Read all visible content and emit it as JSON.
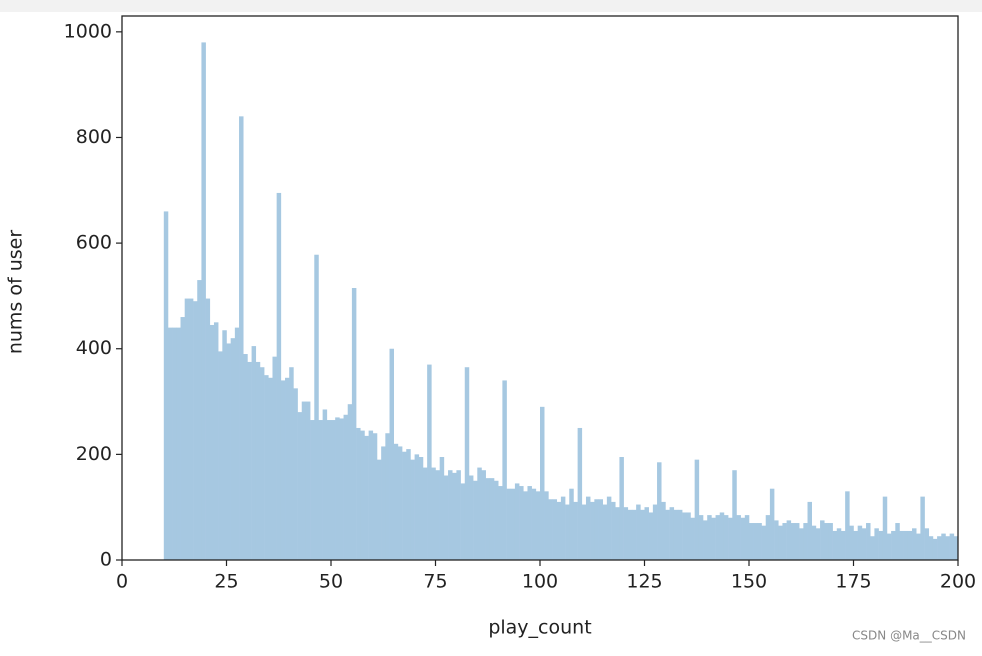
{
  "chart_data": {
    "type": "histogram",
    "xlabel": "play_count",
    "ylabel": "nums of user",
    "watermark": "CSDN @Ma__CSDN",
    "color": "#a6c8e1",
    "bins": [
      10,
      11,
      12,
      13,
      14,
      15,
      16,
      17,
      18,
      19,
      20,
      21,
      22,
      23,
      24,
      25,
      26,
      27,
      28,
      29,
      30,
      31,
      32,
      33,
      34,
      35,
      36,
      37,
      38,
      39,
      40,
      41,
      42,
      43,
      44,
      45,
      46,
      47,
      48,
      49,
      50,
      51,
      52,
      53,
      54,
      55,
      56,
      57,
      58,
      59,
      60,
      61,
      62,
      63,
      64,
      65,
      66,
      67,
      68,
      69,
      70,
      71,
      72,
      73,
      74,
      75,
      76,
      77,
      78,
      79,
      80,
      81,
      82,
      83,
      84,
      85,
      86,
      87,
      88,
      89,
      90,
      91,
      92,
      93,
      94,
      95,
      96,
      97,
      98,
      99,
      100,
      101,
      102,
      103,
      104,
      105,
      106,
      107,
      108,
      109,
      110,
      111,
      112,
      113,
      114,
      115,
      116,
      117,
      118,
      119,
      120,
      121,
      122,
      123,
      124,
      125,
      126,
      127,
      128,
      129,
      130,
      131,
      132,
      133,
      134,
      135,
      136,
      137,
      138,
      139,
      140,
      141,
      142,
      143,
      144,
      145,
      146,
      147,
      148,
      149,
      150,
      151,
      152,
      153,
      154,
      155,
      156,
      157,
      158,
      159,
      160,
      161,
      162,
      163,
      164,
      165,
      166,
      167,
      168,
      169,
      170,
      171,
      172,
      173,
      174,
      175,
      176,
      177,
      178,
      179,
      180,
      181,
      182,
      183,
      184,
      185,
      186,
      187,
      188,
      189,
      190,
      191,
      192,
      193,
      194,
      195,
      196,
      197,
      198,
      199,
      200
    ],
    "counts": [
      660,
      440,
      440,
      440,
      460,
      495,
      495,
      490,
      530,
      980,
      495,
      445,
      450,
      395,
      435,
      410,
      420,
      440,
      840,
      390,
      375,
      405,
      375,
      365,
      350,
      345,
      385,
      695,
      340,
      345,
      365,
      325,
      280,
      300,
      300,
      265,
      578,
      265,
      285,
      265,
      265,
      270,
      268,
      275,
      295,
      515,
      250,
      245,
      235,
      245,
      240,
      190,
      215,
      240,
      400,
      220,
      215,
      205,
      210,
      190,
      200,
      195,
      175,
      370,
      175,
      170,
      195,
      160,
      170,
      165,
      170,
      145,
      365,
      160,
      150,
      175,
      170,
      155,
      155,
      150,
      140,
      340,
      135,
      135,
      145,
      140,
      130,
      140,
      135,
      130,
      290,
      130,
      115,
      115,
      110,
      120,
      105,
      135,
      110,
      250,
      105,
      120,
      110,
      115,
      115,
      105,
      120,
      110,
      100,
      195,
      100,
      95,
      95,
      105,
      95,
      100,
      90,
      105,
      185,
      110,
      95,
      100,
      95,
      95,
      90,
      90,
      80,
      190,
      85,
      75,
      85,
      80,
      85,
      90,
      85,
      80,
      170,
      85,
      80,
      85,
      70,
      70,
      70,
      65,
      85,
      135,
      75,
      65,
      70,
      75,
      70,
      70,
      60,
      70,
      110,
      65,
      60,
      75,
      70,
      70,
      55,
      60,
      55,
      130,
      65,
      55,
      65,
      60,
      70,
      45,
      60,
      55,
      120,
      50,
      55,
      70,
      55,
      55,
      55,
      60,
      50,
      120,
      60,
      45,
      40,
      45,
      50,
      45,
      50,
      45
    ],
    "xlim": [
      0,
      200
    ],
    "xticks": [
      0,
      25,
      50,
      75,
      100,
      125,
      150,
      175,
      200
    ],
    "ylim": [
      0,
      1030
    ],
    "yticks": [
      0,
      200,
      400,
      600,
      800,
      1000
    ]
  }
}
